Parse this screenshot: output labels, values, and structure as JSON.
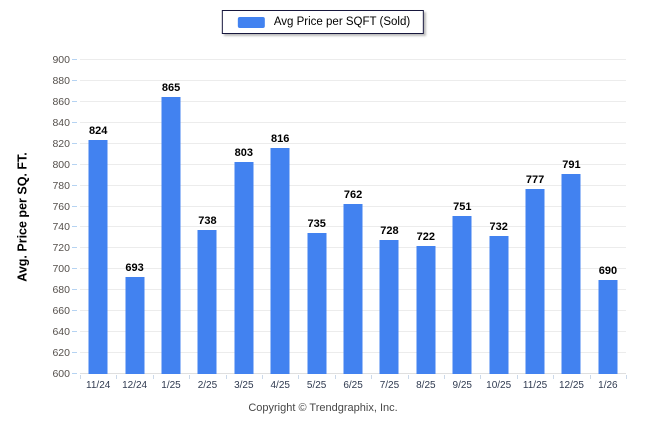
{
  "legend": {
    "label": "Avg Price per SQFT (Sold)",
    "swatch_color": "#4282f0"
  },
  "chart_data": {
    "type": "bar",
    "title": "",
    "series_name": "Avg Price per SQFT (Sold)",
    "categories": [
      "11/24",
      "12/24",
      "1/25",
      "2/25",
      "3/25",
      "4/25",
      "5/25",
      "6/25",
      "7/25",
      "8/25",
      "9/25",
      "10/25",
      "11/25",
      "12/25",
      "1/26"
    ],
    "values": [
      824,
      693,
      865,
      738,
      803,
      816,
      735,
      762,
      728,
      722,
      751,
      732,
      777,
      791,
      690
    ],
    "xlabel": "",
    "ylabel": "Avg. Price per SQ. FT.",
    "ylim": [
      600,
      900
    ],
    "ytick_step": 20,
    "grid": true,
    "legend_position": "top-center",
    "bar_color": "#4282f0",
    "value_labels_shown": true
  },
  "footer": {
    "copyright": "Copyright © Trendgraphix, Inc."
  }
}
